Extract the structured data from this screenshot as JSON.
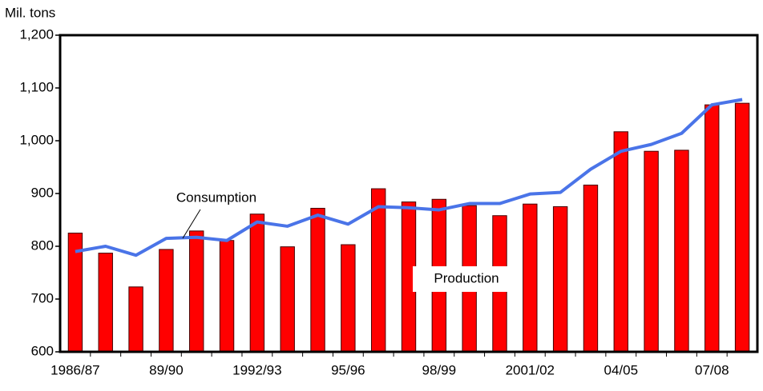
{
  "chart_data": {
    "type": "bar",
    "y_label": "Mil. tons",
    "categories": [
      "1986/87",
      null,
      null,
      "89/90",
      null,
      null,
      "1992/93",
      null,
      null,
      "95/96",
      null,
      null,
      "98/99",
      null,
      null,
      "2001/02",
      null,
      null,
      "04/05",
      null,
      null,
      "07/08",
      null
    ],
    "series": [
      {
        "name": "Production",
        "type": "bar",
        "color": "#ff0000",
        "values": [
          825,
          787,
          723,
          794,
          829,
          811,
          861,
          799,
          872,
          803,
          909,
          884,
          889,
          877,
          858,
          880,
          875,
          916,
          1017,
          980,
          982,
          1068,
          1071
        ]
      },
      {
        "name": "Consumption",
        "type": "line",
        "color": "#4a74e8",
        "values": [
          790,
          800,
          783,
          815,
          817,
          811,
          846,
          838,
          859,
          842,
          875,
          873,
          869,
          881,
          881,
          899,
          902,
          946,
          980,
          993,
          1014,
          1068,
          1078
        ]
      }
    ],
    "ylim": [
      600,
      1200
    ],
    "yticks": [
      600,
      700,
      800,
      900,
      {
        "value": 1000,
        "label": "1,000"
      },
      {
        "value": 1100,
        "label": "1,100"
      },
      {
        "value": 1200,
        "label": "1,200"
      }
    ],
    "grid": false
  }
}
